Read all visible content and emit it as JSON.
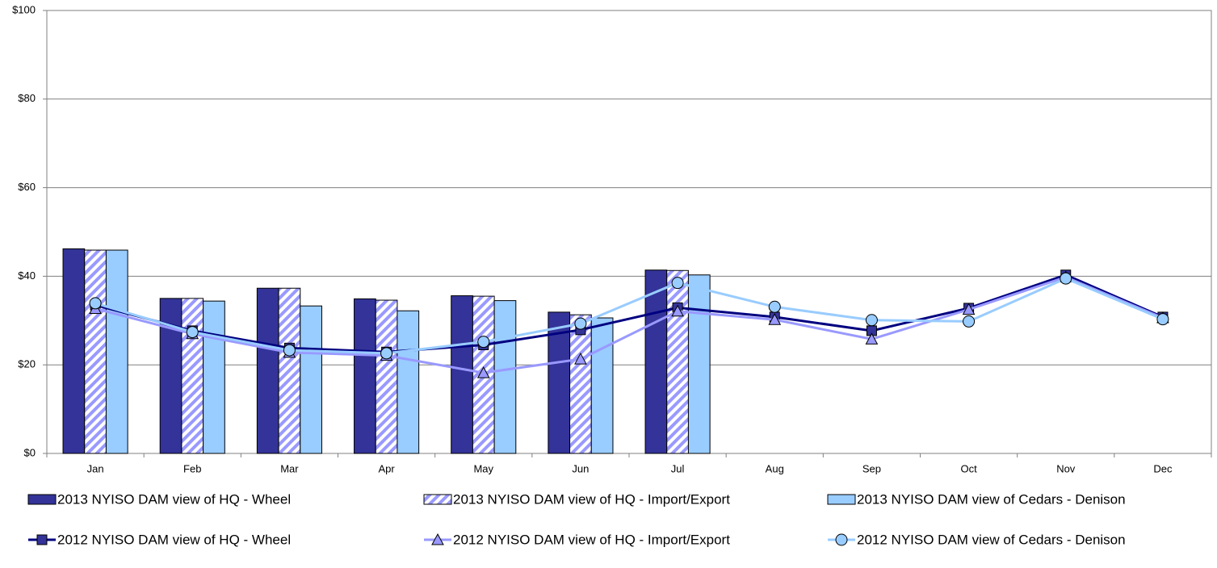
{
  "chart_data": {
    "type": "bar-line",
    "categories": [
      "Jan",
      "Feb",
      "Mar",
      "Apr",
      "May",
      "Jun",
      "Jul",
      "Aug",
      "Sep",
      "Oct",
      "Nov",
      "Dec"
    ],
    "ylim": [
      0,
      100
    ],
    "yticks": [
      {
        "value": 0,
        "label": "$0"
      },
      {
        "value": 20,
        "label": "$20"
      },
      {
        "value": 40,
        "label": "$40"
      },
      {
        "value": 60,
        "label": "$60"
      },
      {
        "value": 80,
        "label": "$80"
      },
      {
        "value": 100,
        "label": "$100"
      }
    ],
    "grid": true,
    "legend": "bottom",
    "series": [
      {
        "name": "2013 NYISO DAM view of HQ - Wheel",
        "kind": "bar",
        "color": "#333399",
        "values": [
          46.2,
          35.0,
          37.3,
          34.9,
          35.6,
          31.9,
          41.4,
          null,
          null,
          null,
          null,
          null
        ]
      },
      {
        "name": "2013 NYISO DAM view of HQ - Import/Export",
        "kind": "bar",
        "color": "#9999ff",
        "pattern": "hatch",
        "values": [
          45.9,
          35.0,
          37.3,
          34.6,
          35.5,
          31.3,
          41.3,
          null,
          null,
          null,
          null,
          null
        ]
      },
      {
        "name": "2013 NYISO DAM view of Cedars - Denison",
        "kind": "bar",
        "color": "#99ccff",
        "values": [
          45.9,
          34.4,
          33.3,
          32.2,
          34.5,
          30.6,
          40.3,
          null,
          null,
          null,
          null,
          null
        ]
      },
      {
        "name": "2012 NYISO DAM view of HQ - Wheel",
        "kind": "line",
        "color": "#000080",
        "marker": "square",
        "marker_color": "#333399",
        "values": [
          33.5,
          27.7,
          23.8,
          22.9,
          24.5,
          27.9,
          32.9,
          30.8,
          27.7,
          32.8,
          40.3,
          30.8
        ]
      },
      {
        "name": "2012 NYISO DAM view of HQ - Import/Export",
        "kind": "line",
        "color": "#9999ff",
        "marker": "triangle",
        "marker_color": "#9999ff",
        "values": [
          32.7,
          27.0,
          22.8,
          22.1,
          18.2,
          21.3,
          32.1,
          30.2,
          25.8,
          32.5,
          39.8,
          30.6
        ]
      },
      {
        "name": "2012 NYISO DAM view of Cedars - Denison",
        "kind": "line",
        "color": "#99ccff",
        "marker": "circle",
        "marker_color": "#99ccff",
        "values": [
          33.9,
          27.4,
          23.3,
          22.6,
          25.2,
          29.3,
          38.5,
          33.1,
          30.1,
          29.8,
          39.5,
          30.3
        ]
      }
    ]
  }
}
